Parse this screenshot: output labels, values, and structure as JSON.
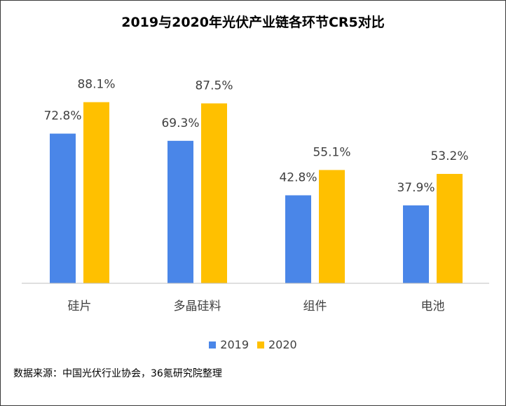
{
  "title": "2019与2020年光伏产业链各环节CR5对比",
  "source": "数据来源：中国光伏行业协会，36氪研究院整理",
  "colors": {
    "2019": "#4a86e8",
    "2020": "#ffc000",
    "axis": "#bfbfbf"
  },
  "chart_data": {
    "type": "bar",
    "title": "2019与2020年光伏产业链各环节CR5对比",
    "categories": [
      "硅片",
      "多晶硅料",
      "组件",
      "电池"
    ],
    "series": [
      {
        "name": "2019",
        "values": [
          72.8,
          69.3,
          42.8,
          37.9
        ],
        "labels": [
          "72.8%",
          "69.3%",
          "42.8%",
          "37.9%"
        ]
      },
      {
        "name": "2020",
        "values": [
          88.1,
          87.5,
          55.1,
          53.2
        ],
        "labels": [
          "88.1%",
          "87.5%",
          "55.1%",
          "53.2%"
        ]
      }
    ],
    "ylim": [
      0,
      100
    ],
    "grid": false,
    "legend_position": "bottom"
  }
}
